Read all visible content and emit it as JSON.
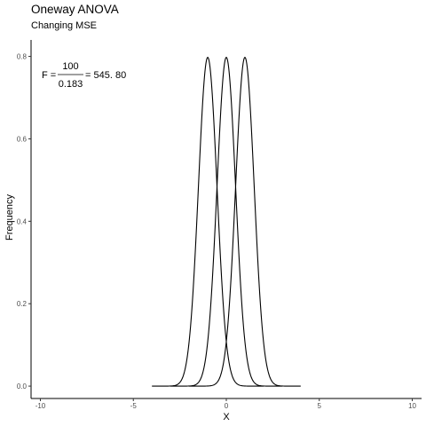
{
  "chart_data": {
    "type": "line",
    "title": "Oneway ANOVA",
    "subtitle": "Changing MSE",
    "xlabel": "X",
    "ylabel": "Frequency",
    "xlim": [
      -10.5,
      10.5
    ],
    "ylim": [
      -0.03,
      0.84
    ],
    "x_ticks": [
      -10,
      -5,
      0,
      5,
      10
    ],
    "x_tick_labels": [
      "-10",
      "-5",
      "0",
      "5",
      "10"
    ],
    "y_ticks": [
      0.0,
      0.2,
      0.4,
      0.6,
      0.8
    ],
    "y_tick_labels": [
      "0.0",
      "0.2",
      "0.4",
      "0.6",
      "0.8"
    ],
    "grid": false,
    "line_color": "#000000",
    "series": [
      {
        "mean": -1,
        "sd": 0.5,
        "x_range": [
          -4,
          2
        ]
      },
      {
        "mean": 0,
        "sd": 0.5,
        "x_range": [
          -3,
          3
        ]
      },
      {
        "mean": 1,
        "sd": 0.5,
        "x_range": [
          -2,
          4
        ]
      }
    ],
    "annotation": {
      "prefix": "F =",
      "numerator": "100",
      "denominator": "0.183",
      "result": "= 545. 80"
    }
  }
}
